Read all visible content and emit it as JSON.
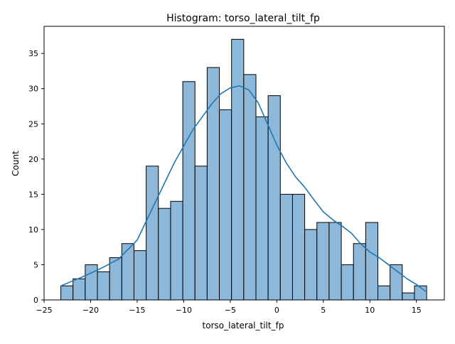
{
  "chart_data": {
    "type": "bar",
    "subtype": "histogram",
    "title": "Histogram: torso_lateral_tilt_fp",
    "xlabel": "torso_lateral_tilt_fp",
    "ylabel": "Count",
    "xlim": [
      -25.0,
      18.0
    ],
    "ylim": [
      0,
      38.85
    ],
    "xticks": [
      -25,
      -20,
      -15,
      -10,
      -5,
      0,
      5,
      10,
      15
    ],
    "xtick_labels": [
      "−25",
      "−20",
      "−15",
      "−10",
      "−5",
      "0",
      "5",
      "10",
      "15"
    ],
    "yticks": [
      0,
      5,
      10,
      15,
      20,
      25,
      30,
      35
    ],
    "ytick_labels": [
      "0",
      "5",
      "10",
      "15",
      "20",
      "25",
      "30",
      "35"
    ],
    "bin_start": -23.2,
    "bin_width": 1.31,
    "counts": [
      2,
      3,
      5,
      4,
      6,
      8,
      7,
      19,
      13,
      14,
      31,
      19,
      33,
      27,
      37,
      32,
      26,
      29,
      15,
      15,
      10,
      11,
      11,
      5,
      8,
      11,
      2,
      5,
      1,
      2
    ],
    "kde": {
      "x": [
        -23.2,
        -21.0,
        -19.0,
        -17.0,
        -15.0,
        -13.0,
        -11.0,
        -9.0,
        -7.0,
        -6.0,
        -5.0,
        -4.0,
        -3.0,
        -2.0,
        -1.0,
        0.0,
        1.0,
        2.0,
        3.0,
        4.0,
        5.0,
        6.0,
        7.0,
        8.0,
        9.0,
        10.0,
        11.0,
        12.0,
        13.0,
        14.0,
        15.0,
        16.0
      ],
      "y": [
        2.0,
        3.2,
        4.4,
        5.8,
        8.5,
        14.0,
        19.5,
        24.2,
        27.8,
        29.3,
        30.1,
        30.4,
        29.8,
        28.0,
        25.0,
        22.0,
        19.5,
        17.5,
        16.0,
        14.2,
        12.5,
        11.4,
        10.5,
        9.5,
        8.0,
        6.8,
        6.0,
        5.0,
        4.0,
        3.0,
        2.2,
        1.2
      ]
    },
    "grid": false,
    "colors": {
      "bar_fill": "#8db8d9",
      "bar_edge": "#000000",
      "kde_line": "#1f77b4"
    }
  }
}
